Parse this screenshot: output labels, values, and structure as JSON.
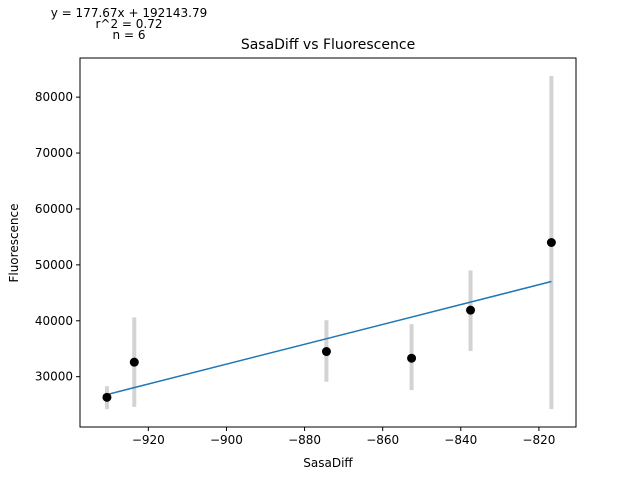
{
  "chart_data": {
    "type": "scatter",
    "title": "SasaDiff vs Fluorescence",
    "xlabel": "SasaDiff",
    "ylabel": "Fluorescence",
    "xlim": [
      -937.5,
      -810.5
    ],
    "ylim": [
      21000,
      87000
    ],
    "xticks": [
      -920,
      -900,
      -880,
      -860,
      -840,
      -820
    ],
    "xtick_labels": [
      "−920",
      "−900",
      "−880",
      "−860",
      "−840",
      "−820"
    ],
    "yticks": [
      30000,
      40000,
      50000,
      60000,
      70000,
      80000
    ],
    "ytick_labels": [
      "30000",
      "40000",
      "50000",
      "60000",
      "70000",
      "80000"
    ],
    "points": [
      {
        "x": -930.6,
        "y": 26300,
        "err_low": 24200,
        "err_high": 28300
      },
      {
        "x": -923.6,
        "y": 32600,
        "err_low": 24600,
        "err_high": 40600
      },
      {
        "x": -874.4,
        "y": 34500,
        "err_low": 29100,
        "err_high": 40100
      },
      {
        "x": -852.6,
        "y": 33300,
        "err_low": 27600,
        "err_high": 39400
      },
      {
        "x": -837.5,
        "y": 41900,
        "err_low": 34600,
        "err_high": 49000
      },
      {
        "x": -816.8,
        "y": 54000,
        "err_low": 24200,
        "err_high": 83800
      }
    ],
    "fit": {
      "slope": 177.67,
      "intercept": 192143.79,
      "x_range": [
        -930.6,
        -816.8
      ]
    },
    "annotations": {
      "equation": "y = 177.67x + 192143.79",
      "r2": "r^2 = 0.72",
      "n": "n = 6"
    },
    "colors": {
      "points": "#000000",
      "errorbars": "#d3d3d3",
      "fit": "#1f77b4"
    }
  }
}
